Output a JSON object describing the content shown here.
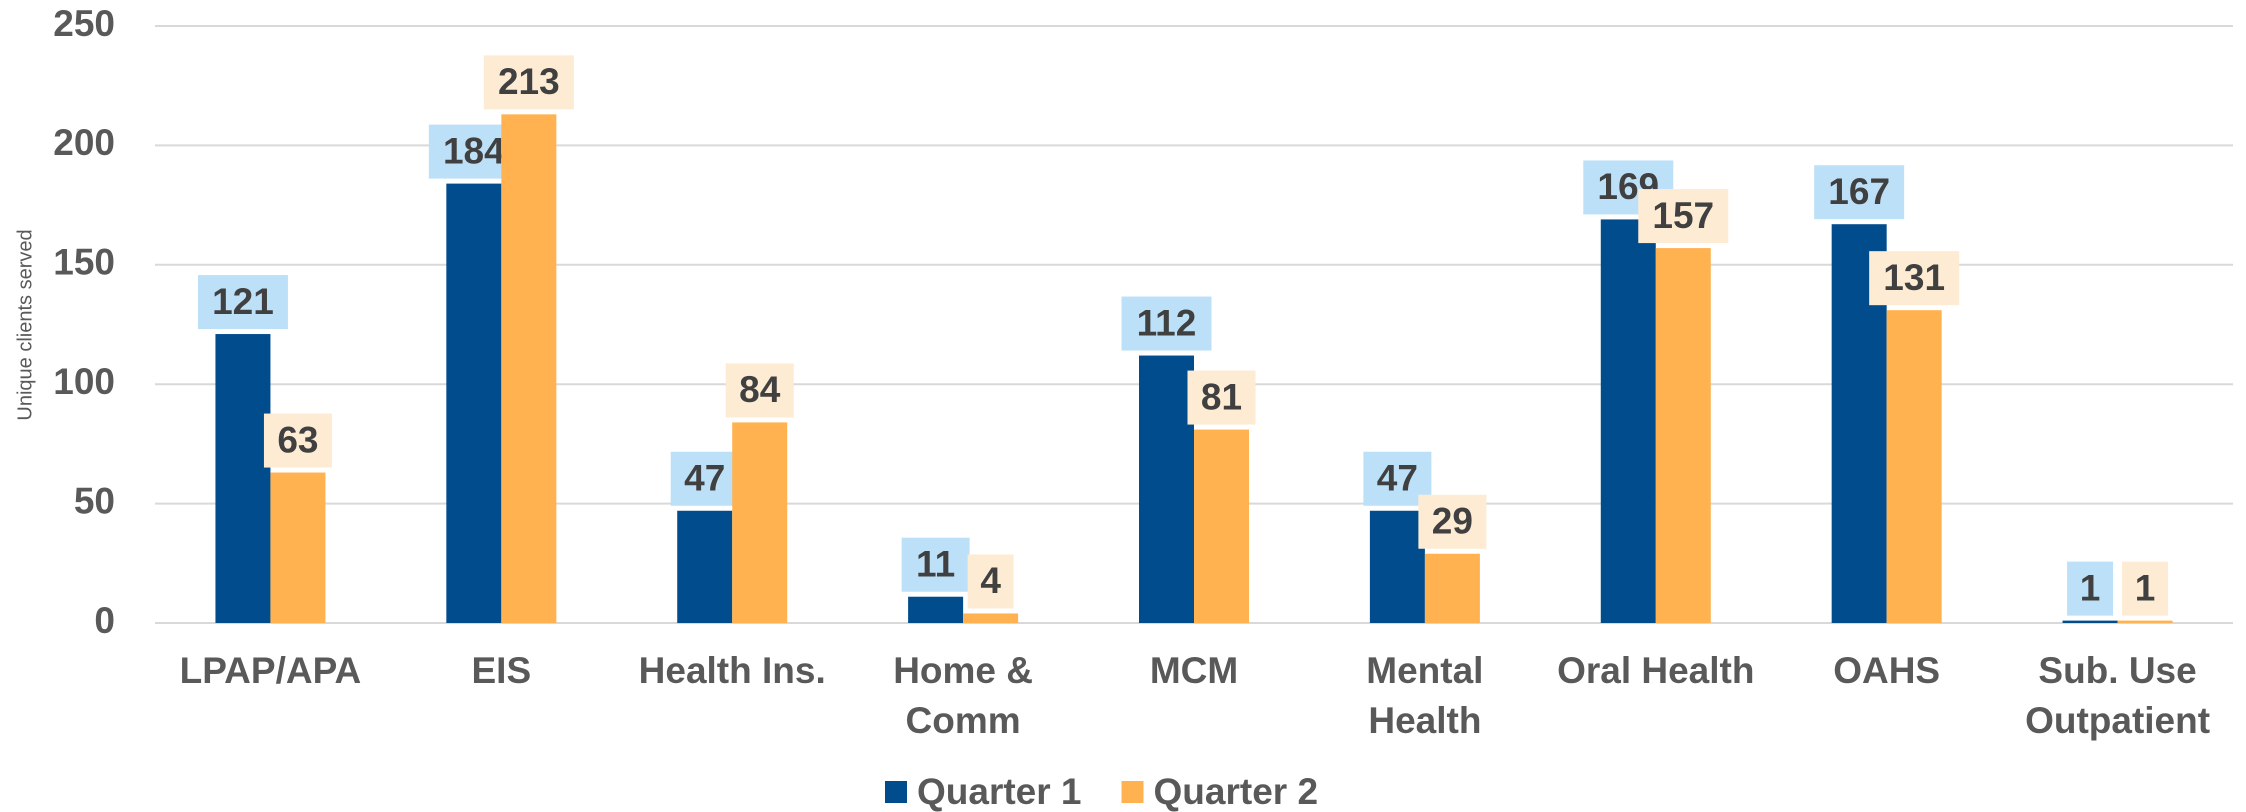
{
  "chart_data": {
    "type": "bar",
    "y_label": "Unique clients served",
    "categories": [
      "LPAP/APA",
      "EIS",
      "Health Ins.",
      "Home &\nComm",
      "MCM",
      "Mental\nHealth",
      "Oral Health",
      "OAHS",
      "Sub. Use\nOutpatient"
    ],
    "series": [
      {
        "name": "Quarter 1",
        "color": "#004c8c",
        "label_bg": "#bde0f9",
        "values": [
          121,
          184,
          47,
          11,
          112,
          47,
          169,
          167,
          1
        ]
      },
      {
        "name": "Quarter 2",
        "color": "#ffb24f",
        "label_bg": "#fdebd4",
        "values": [
          63,
          213,
          84,
          4,
          81,
          29,
          157,
          131,
          1
        ]
      }
    ],
    "ylim": [
      0,
      250
    ],
    "yticks": [
      0,
      50,
      100,
      150,
      200,
      250
    ],
    "grid": true,
    "legend": "bottom"
  }
}
